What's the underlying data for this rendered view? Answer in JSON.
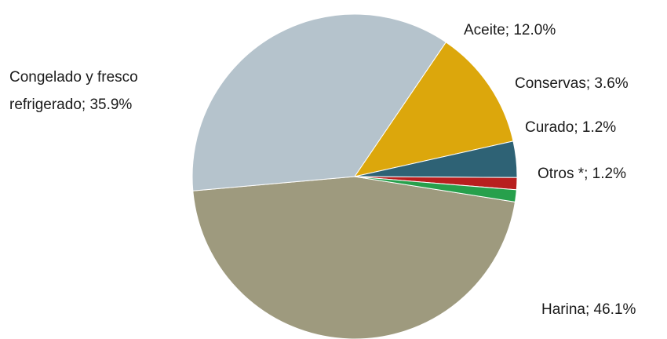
{
  "chart_data": {
    "type": "pie",
    "title": "",
    "slices": [
      {
        "label": "Harina",
        "value": 46.1,
        "display": "Harina; 46.1%",
        "color": "#9e9a7e"
      },
      {
        "label": "Congelado y fresco refrigerado",
        "value": 35.9,
        "display_lines": [
          "Congelado y fresco",
          "refrigerado; 35.9%"
        ],
        "color": "#b5c3cc"
      },
      {
        "label": "Aceite",
        "value": 12.0,
        "display": "Aceite; 12.0%",
        "color": "#dca70c"
      },
      {
        "label": "Conservas",
        "value": 3.6,
        "display": "Conservas; 3.6%",
        "color": "#2e6275"
      },
      {
        "label": "Curado",
        "value": 1.2,
        "display": "Curado; 1.2%",
        "color": "#b81f1f"
      },
      {
        "label": "Otros *",
        "value": 1.2,
        "display": "Otros *; 1.2%",
        "color": "#27a04c"
      }
    ],
    "legend": "none",
    "label_format": "category; percent"
  }
}
